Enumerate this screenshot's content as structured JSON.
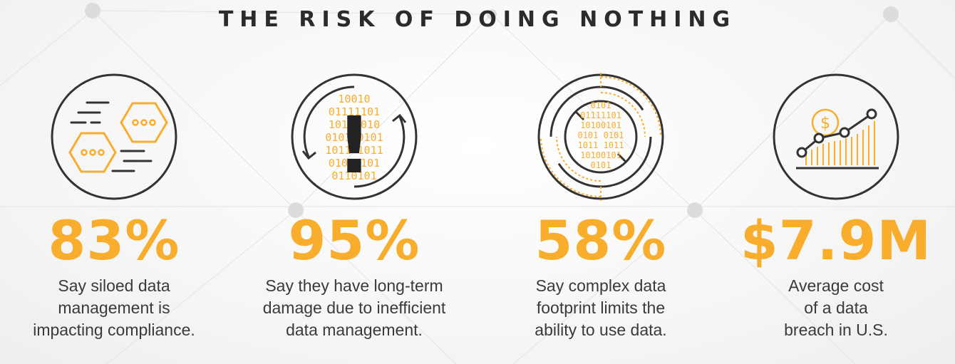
{
  "title": "THE RISK OF DOING NOTHING",
  "colors": {
    "accent": "#f8ad2d",
    "dark": "#333333"
  },
  "stats": [
    {
      "value": "83%",
      "icon": "hexagon-chat-icon",
      "lines": [
        "Say siloed data",
        "management is",
        "impacting compliance."
      ]
    },
    {
      "value": "95%",
      "icon": "binary-warning-icon",
      "lines": [
        "Say they have long-term",
        "damage due to inefficient",
        "data management."
      ]
    },
    {
      "value": "58%",
      "icon": "binary-target-icon",
      "lines": [
        "Say complex data",
        "footprint limits the",
        "ability to use data."
      ]
    },
    {
      "value": "$7.9M",
      "icon": "cost-chart-icon",
      "lines": [
        "Average cost",
        "of a data",
        "breach in U.S."
      ]
    }
  ],
  "binary": {
    "warning_rows": [
      "10010",
      "01111101",
      "10101010",
      "0101 0101",
      "1011 1011",
      "01010101",
      "0110101"
    ],
    "target_rows": [
      "0101",
      "01111101",
      "10100101",
      "0101 0101",
      "1011 1011",
      "10100101",
      "0101"
    ]
  },
  "dollar_sign": "$",
  "warning_mark": "!"
}
